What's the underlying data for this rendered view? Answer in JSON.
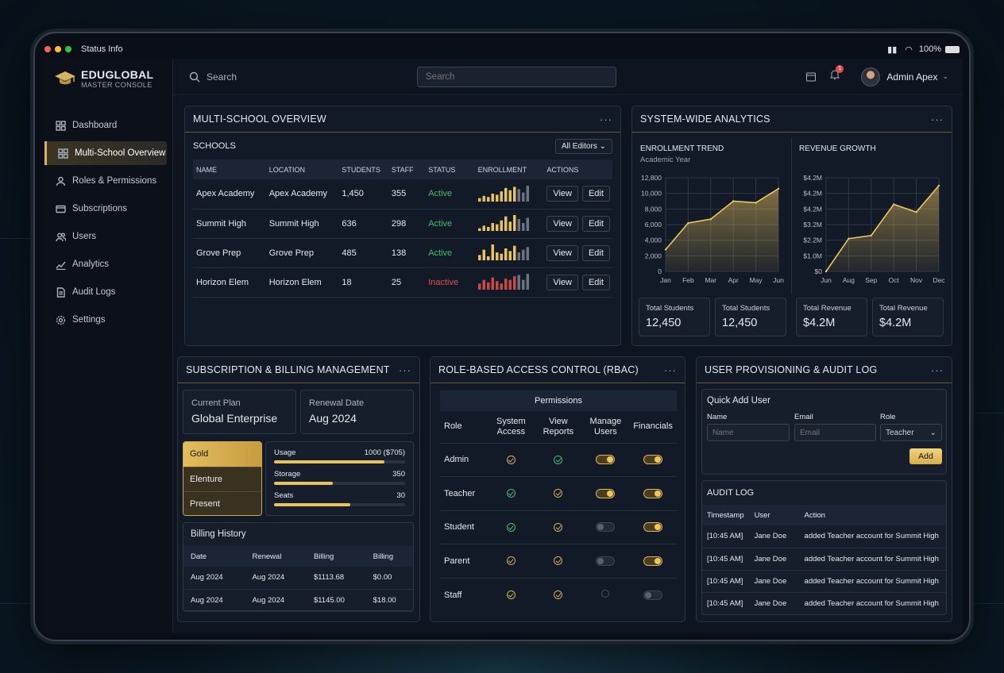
{
  "statusbar": {
    "title": "Status Info",
    "battery": "100%"
  },
  "brand": {
    "name": "EDUGLOBAL",
    "subtitle": "MASTER CONSOLE"
  },
  "nav": [
    {
      "label": "Dashboard",
      "icon": "grid-icon",
      "active": false
    },
    {
      "label": "Multi-School Overview",
      "icon": "grid-icon",
      "active": true
    },
    {
      "label": "Roles & Permissions",
      "icon": "users-permissions-icon",
      "active": false
    },
    {
      "label": "Subscriptions",
      "icon": "card-icon",
      "active": false
    },
    {
      "label": "Users",
      "icon": "users-icon",
      "active": false
    },
    {
      "label": "Analytics",
      "icon": "chart-icon",
      "active": false
    },
    {
      "label": "Audit Logs",
      "icon": "document-icon",
      "active": false
    },
    {
      "label": "Settings",
      "icon": "gear-icon",
      "active": false
    }
  ],
  "topbar": {
    "search_label": "Search",
    "search_placeholder": "Search",
    "admin_name": "Admin Apex",
    "notif_count": "1"
  },
  "overview": {
    "title": "MULTI-SCHOOL OVERVIEW",
    "section": "SCHOOLS",
    "filter": "All Editors",
    "columns": [
      "NAME",
      "LOCATION",
      "STUDENTS",
      "STAFF",
      "STATUS",
      "ENROLLMENT",
      "ACTIONS"
    ],
    "rows": [
      {
        "name": "Apex Academy",
        "location": "Apex Academy",
        "students": "1,450",
        "staff": "355",
        "status": "Active",
        "bars": [
          3,
          5,
          4,
          7,
          6,
          9,
          12,
          10,
          13,
          11,
          8,
          14
        ],
        "tone": "gold"
      },
      {
        "name": "Summit High",
        "location": "Summit High",
        "students": "636",
        "staff": "298",
        "status": "Active",
        "bars": [
          2,
          4,
          3,
          6,
          5,
          8,
          11,
          7,
          12,
          9,
          6,
          10
        ],
        "tone": "gold"
      },
      {
        "name": "Grove Prep",
        "location": "Grove Prep",
        "students": "485",
        "staff": "138",
        "status": "Active",
        "bars": [
          4,
          8,
          3,
          12,
          6,
          5,
          9,
          7,
          11,
          6,
          8,
          10
        ],
        "tone": "gold"
      },
      {
        "name": "Horizon Elem",
        "location": "Horizon Elem",
        "students": "18",
        "staff": "25",
        "status": "Inactive",
        "bars": [
          5,
          8,
          6,
          10,
          7,
          5,
          9,
          8,
          11,
          12,
          8,
          13
        ],
        "tone": "red"
      }
    ],
    "view_label": "View",
    "edit_label": "Edit"
  },
  "analytics": {
    "title": "SYSTEM-WIDE ANALYTICS",
    "enroll_title": "ENROLLMENT TREND",
    "enroll_sub": "Academic Year",
    "revenue_title": "REVENUE GROWTH",
    "cards": [
      {
        "label": "Total Students",
        "value": "12,450"
      },
      {
        "label": "Total Students",
        "value": "12,450"
      },
      {
        "label": "Total Revenue",
        "value": "$4.2M"
      },
      {
        "label": "Total Revenue",
        "value": "$4.2M"
      }
    ]
  },
  "chart_data": [
    {
      "type": "area",
      "title": "ENROLLMENT TREND",
      "subtitle": "Academic Year",
      "categories": [
        "Jan",
        "Feb",
        "Mar",
        "Apr",
        "May",
        "Jun"
      ],
      "values": [
        2800,
        6200,
        6700,
        9000,
        8800,
        10600
      ],
      "y_ticks": [
        "12,800",
        "10,000",
        "8,000",
        "6,000",
        "4,000",
        "2,000",
        "0"
      ],
      "ylim": [
        0,
        12000
      ],
      "grid": true
    },
    {
      "type": "area",
      "title": "REVENUE GROWTH",
      "categories": [
        "Jun",
        "Aug",
        "Sep",
        "Oct",
        "Nov",
        "Dec"
      ],
      "values": [
        0,
        2.1,
        2.3,
        4.3,
        3.8,
        5.5
      ],
      "y_ticks": [
        "$4.2M",
        "$4.2M",
        "$4.2M",
        "$3.2M",
        "$2.2M",
        "$1.0M",
        "$0"
      ],
      "ylim": [
        0,
        6
      ],
      "grid": true
    }
  ],
  "billing": {
    "title": "SUBSCRIPTION & BILLING MANAGEMENT",
    "plan_label": "Current Plan",
    "plan_value": "Global Enterprise",
    "renew_label": "Renewal Date",
    "renew_value": "Aug 2024",
    "tiers": [
      "Gold",
      "Elenture",
      "Present"
    ],
    "usage": [
      {
        "label": "Usage",
        "value": "1000 ($705)",
        "fill": 0.84
      },
      {
        "label": "Storage",
        "value": "350",
        "fill": 0.45
      },
      {
        "label": "Seats",
        "value": "30",
        "fill": 0.58
      }
    ],
    "history_title": "Billing History",
    "history_cols": [
      "Date",
      "Renewal",
      "Billing",
      "Billing"
    ],
    "history_rows": [
      [
        "Aug 2024",
        "Aug 2024",
        "$1113.68",
        "$0.00"
      ],
      [
        "Aug 2024",
        "Aug 2024",
        "$1145.00",
        "$18.00"
      ]
    ]
  },
  "rbac": {
    "title": "ROLE-BASED ACCESS CONTROL (RBAC)",
    "permissions": "Permissions",
    "cols": [
      "Role",
      "System Access",
      "View Reports",
      "Manage Users",
      "Financials"
    ],
    "rows": [
      {
        "role": "Admin",
        "c": [
          "gold",
          "green",
          "on",
          "on"
        ]
      },
      {
        "role": "Teacher",
        "c": [
          "green",
          "gold",
          "on",
          "on"
        ]
      },
      {
        "role": "Student",
        "c": [
          "green",
          "gold",
          "off",
          "on"
        ]
      },
      {
        "role": "Parent",
        "c": [
          "gold",
          "gold",
          "off",
          "on"
        ]
      },
      {
        "role": "Staff",
        "c": [
          "gold",
          "gold",
          "none",
          "off"
        ]
      }
    ]
  },
  "provision": {
    "title": "USER PROVISIONING & AUDIT LOG",
    "quick_title": "Quick Add User",
    "name_label": "Name",
    "email_label": "Email",
    "role_label": "Role",
    "name_ph": "Name",
    "email_ph": "Email",
    "role_value": "Teacher",
    "add_label": "Add",
    "audit_title": "AUDIT LOG",
    "audit_cols": [
      "Timestamp",
      "User",
      "Action"
    ],
    "audit_rows": [
      [
        "[10:45 AM]",
        "Jane Doe",
        "added Teacher account for Summit High"
      ],
      [
        "[10:45 AM]",
        "Jane Doe",
        "added Teacher account for Summit High"
      ],
      [
        "[10:45 AM]",
        "Jane Doe",
        "added Teacher account for Summit High"
      ],
      [
        "[10:45 AM]",
        "Jane Doe",
        "added Teacher account for Summit High"
      ]
    ]
  }
}
